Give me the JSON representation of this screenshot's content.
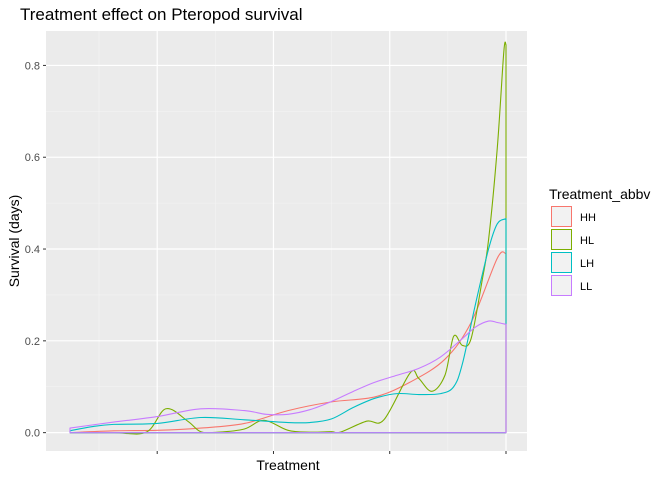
{
  "chart_data": {
    "type": "area",
    "title": "Treatment effect on Pteropod survival",
    "xlabel": "Treatment",
    "ylabel": "Survival (days)",
    "ylim": [
      -0.04,
      0.875
    ],
    "xlim": [
      0,
      1
    ],
    "y_ticks": [
      0.0,
      0.2,
      0.4,
      0.6,
      0.8
    ],
    "y_tick_labels": [
      "0.0",
      "0.2",
      "0.4",
      "0.6",
      "0.8"
    ],
    "x_ticks": [
      0.2,
      0.4667,
      0.7333,
      1.0
    ],
    "grid": true,
    "legend": {
      "title": "Treatment_abbv",
      "placement": "right"
    },
    "series": [
      {
        "name": "HH",
        "color": "#F8766D",
        "x": [
          0,
          0.1,
          0.2,
          0.3,
          0.4,
          0.5,
          0.6,
          0.7,
          0.78,
          0.86,
          0.92,
          0.98,
          1.0
        ],
        "y": [
          0.0,
          0.004,
          0.005,
          0.01,
          0.02,
          0.048,
          0.067,
          0.078,
          0.11,
          0.16,
          0.24,
          0.38,
          0.39
        ]
      },
      {
        "name": "HL",
        "color": "#7CAE00",
        "x": [
          0,
          0.1,
          0.175,
          0.22,
          0.27,
          0.3,
          0.34,
          0.4,
          0.445,
          0.5,
          0.55,
          0.6,
          0.62,
          0.68,
          0.72,
          0.78,
          0.8,
          0.83,
          0.86,
          0.88,
          0.9,
          0.92,
          0.945,
          0.96,
          0.98,
          0.995,
          1.0
        ],
        "y": [
          0.0,
          0.0,
          0.001,
          0.052,
          0.025,
          0.002,
          0.001,
          0.008,
          0.027,
          0.005,
          0.001,
          0.002,
          0.001,
          0.025,
          0.028,
          0.13,
          0.118,
          0.09,
          0.125,
          0.21,
          0.19,
          0.205,
          0.33,
          0.42,
          0.62,
          0.83,
          0.845
        ]
      },
      {
        "name": "LH",
        "color": "#00BFC4",
        "x": [
          0,
          0.05,
          0.1,
          0.2,
          0.3,
          0.4,
          0.5,
          0.55,
          0.6,
          0.65,
          0.7,
          0.75,
          0.8,
          0.85,
          0.88,
          0.9,
          0.93,
          0.96,
          0.98,
          1.0
        ],
        "y": [
          0.004,
          0.013,
          0.018,
          0.02,
          0.033,
          0.028,
          0.022,
          0.022,
          0.03,
          0.055,
          0.075,
          0.085,
          0.083,
          0.085,
          0.1,
          0.15,
          0.28,
          0.4,
          0.455,
          0.466
        ]
      },
      {
        "name": "LL",
        "color": "#C77CFF",
        "x": [
          0,
          0.1,
          0.2,
          0.3,
          0.4,
          0.45,
          0.5,
          0.55,
          0.6,
          0.65,
          0.7,
          0.75,
          0.8,
          0.85,
          0.9,
          0.93,
          0.96,
          0.98,
          1.0
        ],
        "y": [
          0.01,
          0.023,
          0.035,
          0.052,
          0.048,
          0.04,
          0.04,
          0.05,
          0.068,
          0.09,
          0.11,
          0.125,
          0.14,
          0.165,
          0.205,
          0.23,
          0.243,
          0.24,
          0.236
        ]
      }
    ]
  }
}
